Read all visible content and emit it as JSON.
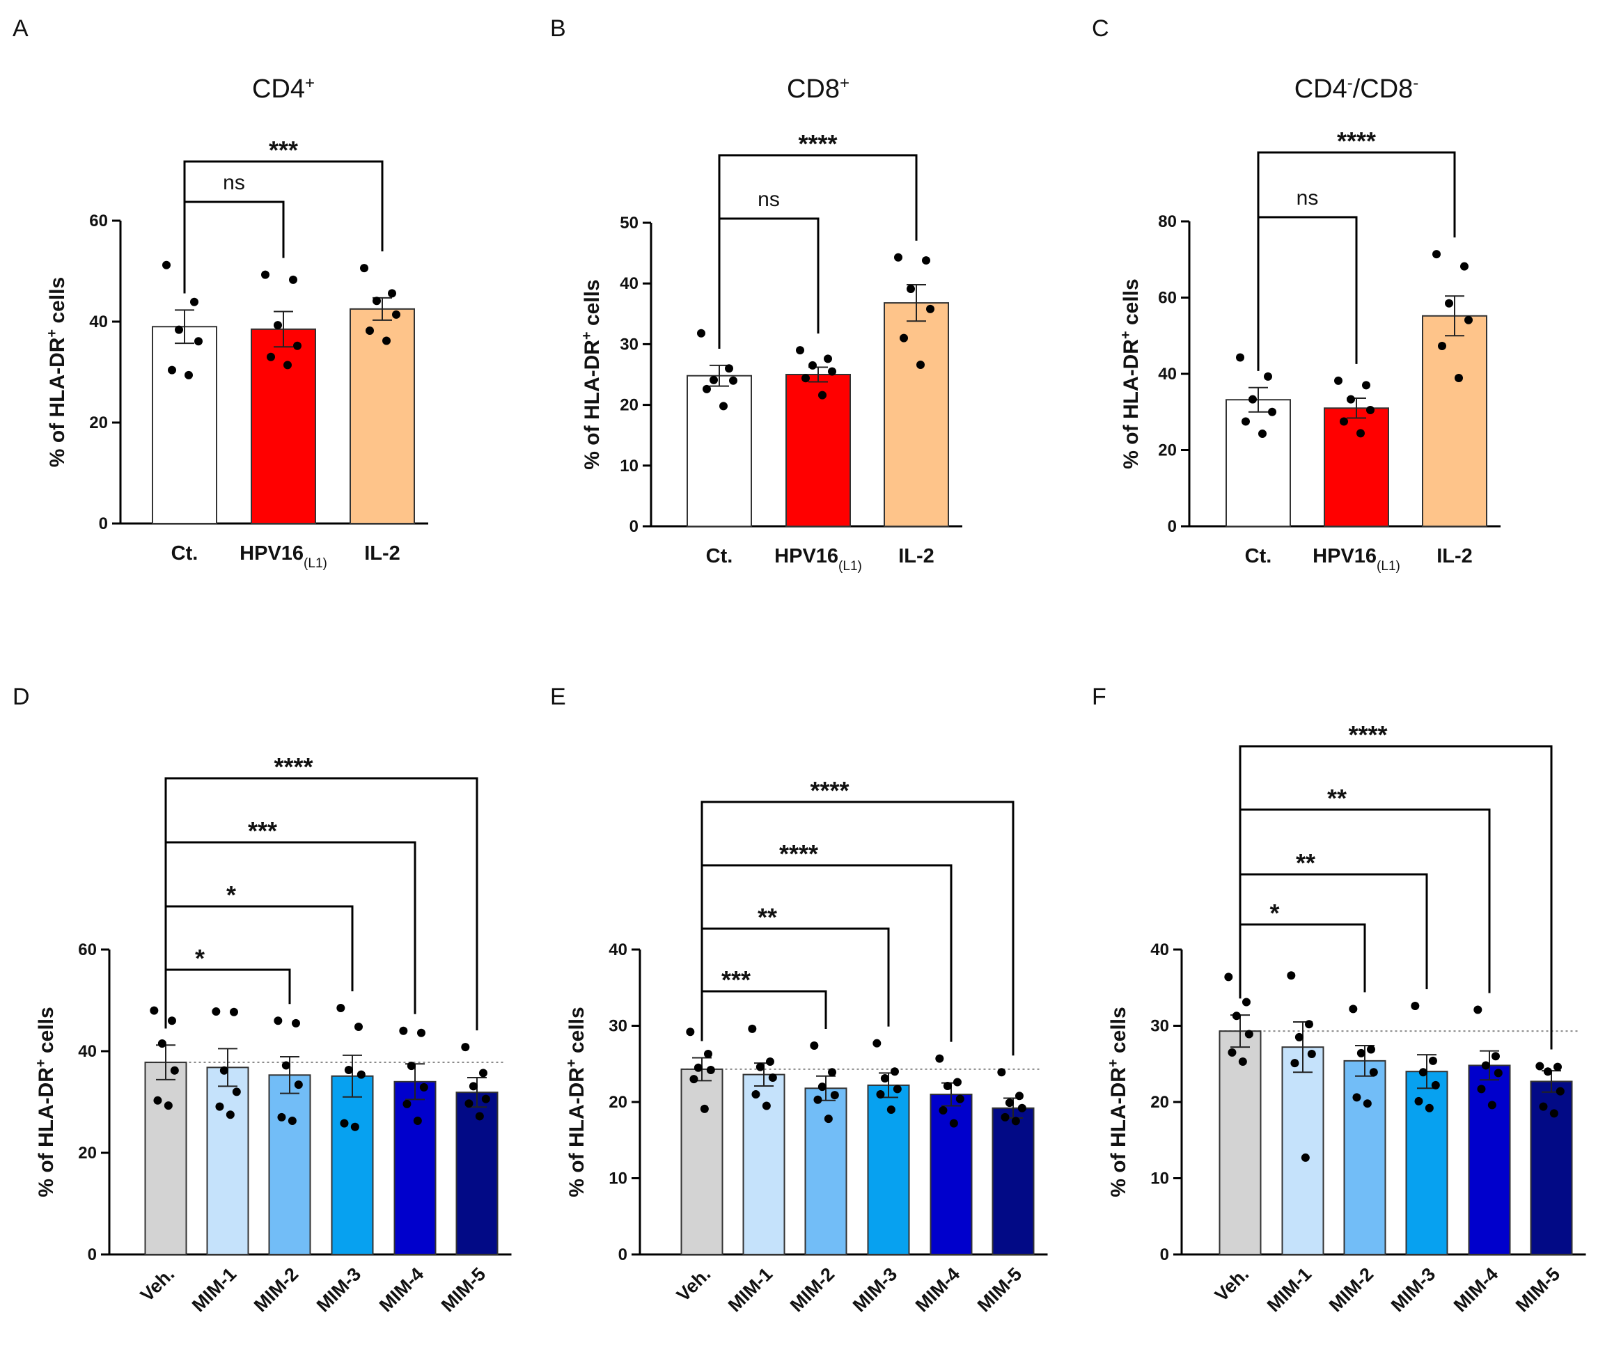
{
  "chart_data": [
    {
      "panel": "A",
      "type": "bar",
      "title": "CD4",
      "title_sup": "+",
      "ylabel": "% of HLA-DR",
      "ylabel_sup": "+",
      "ylabel_suffix": " cells",
      "ylim": [
        0,
        60
      ],
      "yticks": [
        "0",
        "20",
        "40",
        "60"
      ],
      "categories": [
        "Ct.",
        "HPV16",
        "IL-2"
      ],
      "category_subscripts": [
        "",
        "(L1)",
        ""
      ],
      "values": [
        39,
        38.5,
        42.5
      ],
      "errors": [
        3.3,
        3.5,
        2.2
      ],
      "colors": [
        "#ffffff",
        "#ff0000",
        "#fec48a"
      ],
      "points": [
        [
          51.2,
          43.9,
          38.4,
          36.1,
          30.4,
          29.4
        ],
        [
          49.3,
          48.3,
          39.3,
          35.2,
          33.0,
          31.4
        ],
        [
          50.6,
          45.6,
          44.1,
          41.4,
          38.2,
          36.2
        ]
      ],
      "comparisons": [
        {
          "from": 0,
          "to": 1,
          "label": "ns"
        },
        {
          "from": 0,
          "to": 2,
          "label": "***"
        }
      ],
      "reference_line": null
    },
    {
      "panel": "B",
      "type": "bar",
      "title": "CD8",
      "title_sup": "+",
      "ylabel": "% of HLA-DR",
      "ylabel_sup": "+",
      "ylabel_suffix": " cells",
      "ylim": [
        0,
        50
      ],
      "yticks": [
        "0",
        "10",
        "20",
        "30",
        "40",
        "50"
      ],
      "categories": [
        "Ct.",
        "HPV16",
        "IL-2"
      ],
      "category_subscripts": [
        "",
        "(L1)",
        ""
      ],
      "values": [
        24.8,
        25.0,
        36.8
      ],
      "errors": [
        1.7,
        1.2,
        3.0
      ],
      "colors": [
        "#ffffff",
        "#ff0000",
        "#fec48a"
      ],
      "points": [
        [
          31.8,
          26.0,
          24.1,
          24.0,
          22.6,
          19.8
        ],
        [
          29.0,
          27.6,
          26.5,
          25.5,
          24.4,
          21.6
        ],
        [
          44.3,
          43.8,
          39.1,
          35.8,
          31.0,
          26.6
        ]
      ],
      "comparisons": [
        {
          "from": 0,
          "to": 1,
          "label": "ns"
        },
        {
          "from": 0,
          "to": 2,
          "label": "****"
        }
      ],
      "reference_line": null
    },
    {
      "panel": "C",
      "type": "bar",
      "title": "CD4",
      "title_sup": "-",
      "title_mid": "/CD8",
      "title_sup2": "-",
      "ylabel": "% of HLA-DR",
      "ylabel_sup": "+",
      "ylabel_suffix": " cells",
      "ylim": [
        0,
        80
      ],
      "yticks": [
        "0",
        "20",
        "40",
        "60",
        "80"
      ],
      "categories": [
        "Ct.",
        "HPV16",
        "IL-2"
      ],
      "category_subscripts": [
        "",
        "(L1)",
        ""
      ],
      "values": [
        33.2,
        31.0,
        55.2
      ],
      "errors": [
        3.2,
        2.6,
        5.2
      ],
      "colors": [
        "#ffffff",
        "#ff0000",
        "#fec48a"
      ],
      "points": [
        [
          44.3,
          39.3,
          33.3,
          30.0,
          27.5,
          24.3
        ],
        [
          38.2,
          37.0,
          33.3,
          30.5,
          27.5,
          24.4
        ],
        [
          71.4,
          68.2,
          58.5,
          54.1,
          47.3,
          38.9
        ]
      ],
      "comparisons": [
        {
          "from": 0,
          "to": 1,
          "label": "ns"
        },
        {
          "from": 0,
          "to": 2,
          "label": "****"
        }
      ],
      "reference_line": null
    },
    {
      "panel": "D",
      "type": "bar",
      "title": "",
      "ylabel": "% of HLA-DR",
      "ylabel_sup": "+",
      "ylabel_suffix": " cells",
      "ylim": [
        0,
        60
      ],
      "yticks": [
        "0",
        "20",
        "40",
        "60"
      ],
      "categories": [
        "Veh.",
        "MIM-1",
        "MIM-2",
        "MIM-3",
        "MIM-4",
        "MIM-5"
      ],
      "values": [
        37.8,
        36.8,
        35.3,
        35.1,
        34.0,
        31.9
      ],
      "errors": [
        3.4,
        3.7,
        3.6,
        4.1,
        3.5,
        2.9
      ],
      "colors": [
        "#d3d3d3",
        "#c5e2fb",
        "#72bdf7",
        "#07a1f0",
        "#0000cc",
        "#020a86"
      ],
      "points": [
        [
          48.0,
          46.0,
          41.5,
          36.2,
          30.3,
          29.3
        ],
        [
          47.8,
          47.7,
          36.2,
          32.0,
          29.1,
          27.5
        ],
        [
          46.0,
          45.5,
          37.2,
          33.4,
          27.0,
          26.3
        ],
        [
          48.5,
          44.8,
          36.3,
          35.4,
          25.8,
          25.1
        ],
        [
          44.0,
          43.6,
          37.1,
          32.9,
          29.6,
          26.3
        ],
        [
          40.8,
          35.7,
          33.1,
          30.6,
          29.7,
          27.2
        ]
      ],
      "comparisons": [
        {
          "from": 0,
          "to": 2,
          "label": "*"
        },
        {
          "from": 0,
          "to": 3,
          "label": "*"
        },
        {
          "from": 0,
          "to": 4,
          "label": "***"
        },
        {
          "from": 0,
          "to": 5,
          "label": "****"
        }
      ],
      "reference_line": 37.8
    },
    {
      "panel": "E",
      "type": "bar",
      "title": "",
      "ylabel": "% of HLA-DR",
      "ylabel_sup": "+",
      "ylabel_suffix": " cells",
      "ylim": [
        0,
        40
      ],
      "yticks": [
        "0",
        "10",
        "20",
        "30",
        "40"
      ],
      "categories": [
        "Veh.",
        "MIM-1",
        "MIM-2",
        "MIM-3",
        "MIM-4",
        "MIM-5"
      ],
      "values": [
        24.3,
        23.6,
        21.8,
        22.2,
        21.0,
        19.2
      ],
      "errors": [
        1.5,
        1.5,
        1.6,
        1.6,
        1.5,
        1.3
      ],
      "colors": [
        "#d3d3d3",
        "#c5e2fb",
        "#72bdf7",
        "#07a1f0",
        "#0000cc",
        "#020a86"
      ],
      "points": [
        [
          29.2,
          26.3,
          24.5,
          24.2,
          23.0,
          19.1
        ],
        [
          29.6,
          25.3,
          24.6,
          23.2,
          21.0,
          19.5
        ],
        [
          27.4,
          23.9,
          22.0,
          20.9,
          20.3,
          17.8
        ],
        [
          27.7,
          24.0,
          23.1,
          21.7,
          21.0,
          19.0
        ],
        [
          25.7,
          22.6,
          22.1,
          20.4,
          18.9,
          17.2
        ],
        [
          23.9,
          20.8,
          19.9,
          19.2,
          18.0,
          17.5
        ]
      ],
      "comparisons": [
        {
          "from": 0,
          "to": 2,
          "label": "***"
        },
        {
          "from": 0,
          "to": 3,
          "label": "**"
        },
        {
          "from": 0,
          "to": 4,
          "label": "****"
        },
        {
          "from": 0,
          "to": 5,
          "label": "****"
        }
      ],
      "reference_line": 24.3
    },
    {
      "panel": "F",
      "type": "bar",
      "title": "",
      "ylabel": "% of HLA-DR",
      "ylabel_sup": "+",
      "ylabel_suffix": " cells",
      "ylim": [
        0,
        40
      ],
      "yticks": [
        "0",
        "10",
        "20",
        "30",
        "40"
      ],
      "categories": [
        "Veh.",
        "MIM-1",
        "MIM-2",
        "MIM-3",
        "MIM-4",
        "MIM-5"
      ],
      "values": [
        29.3,
        27.2,
        25.4,
        24.0,
        24.8,
        22.7
      ],
      "errors": [
        2.1,
        3.3,
        2.0,
        2.2,
        1.9,
        1.4
      ],
      "colors": [
        "#d3d3d3",
        "#c5e2fb",
        "#72bdf7",
        "#07a1f0",
        "#0000cc",
        "#020a86"
      ],
      "points": [
        [
          36.4,
          33.1,
          31.3,
          28.9,
          26.5,
          25.3
        ],
        [
          36.6,
          30.2,
          28.5,
          26.3,
          25.1,
          12.7
        ],
        [
          32.2,
          26.9,
          26.4,
          23.9,
          20.6,
          19.8
        ],
        [
          32.6,
          25.4,
          23.9,
          22.2,
          20.1,
          19.2
        ],
        [
          32.1,
          26.0,
          24.8,
          23.8,
          21.7,
          19.6
        ],
        [
          24.7,
          24.6,
          24.0,
          21.4,
          19.4,
          18.5
        ]
      ],
      "comparisons": [
        {
          "from": 0,
          "to": 2,
          "label": "*"
        },
        {
          "from": 0,
          "to": 3,
          "label": "**"
        },
        {
          "from": 0,
          "to": 4,
          "label": "**"
        },
        {
          "from": 0,
          "to": 5,
          "label": "****"
        }
      ],
      "reference_line": 29.3
    }
  ]
}
